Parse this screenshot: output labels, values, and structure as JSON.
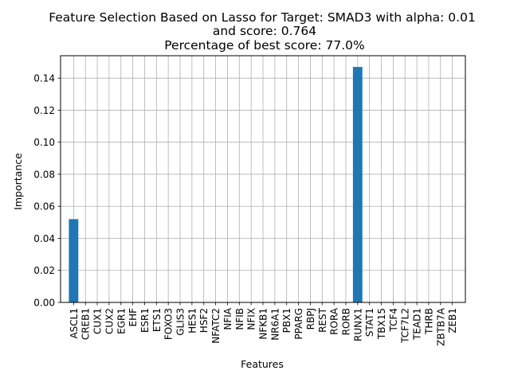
{
  "chart_data": {
    "type": "bar",
    "title_lines": [
      "Feature Selection Based on Lasso for Target: SMAD3 with alpha: 0.01",
      "and score: 0.764",
      "Percentage of best score: 77.0%"
    ],
    "xlabel": "Features",
    "ylabel": "Importance",
    "categories": [
      "ASCL1",
      "CREB1",
      "CUX1",
      "CUX2",
      "EGR1",
      "EHF",
      "ESR1",
      "ETS1",
      "FOXO3",
      "GLIS3",
      "HES1",
      "HSF2",
      "NFATC2",
      "NFIA",
      "NFIB",
      "NFIX",
      "NFKB1",
      "NR6A1",
      "PBX1",
      "PPARG",
      "RBPJ",
      "REST",
      "RORA",
      "RORB",
      "RUNX1",
      "STAT1",
      "TBX15",
      "TCF4",
      "TCF7L2",
      "TEAD1",
      "THRB",
      "ZBTB7A",
      "ZEB1"
    ],
    "values": [
      0.052,
      0,
      0,
      0,
      0,
      0,
      0,
      0,
      0,
      0,
      0,
      0,
      0,
      0,
      0,
      0,
      0,
      0,
      0,
      0,
      0,
      0,
      0,
      0,
      0.147,
      0,
      0,
      0,
      0,
      0,
      0,
      0,
      0
    ],
    "yticks": [
      "0.00",
      "0.02",
      "0.04",
      "0.06",
      "0.08",
      "0.10",
      "0.12",
      "0.14"
    ],
    "ylim": [
      0,
      0.154
    ],
    "grid": true,
    "bar_color": "#1f77b4"
  }
}
